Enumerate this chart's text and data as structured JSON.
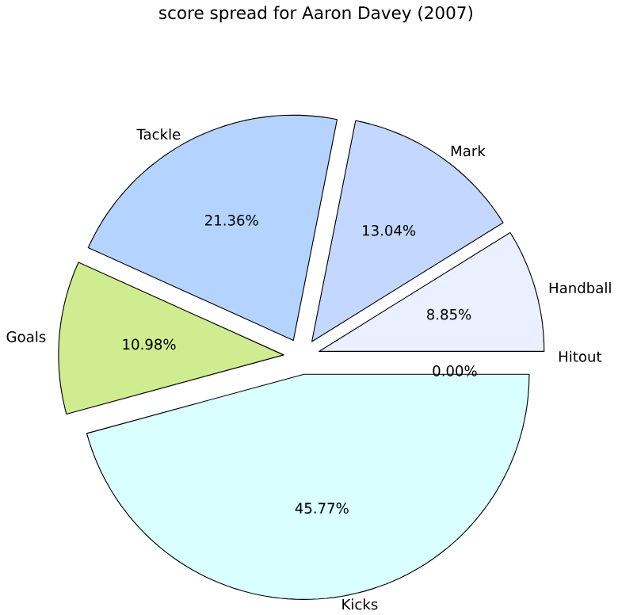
{
  "chart_data": {
    "type": "pie",
    "title": "score spread for Aaron Davey (2007)",
    "categories": [
      "Handball",
      "Mark",
      "Tackle",
      "Goals",
      "Kicks",
      "Hitout"
    ],
    "values": [
      8.85,
      13.04,
      21.36,
      10.98,
      45.77,
      0.0
    ],
    "value_labels": [
      "8.85%",
      "13.04%",
      "21.36%",
      "10.98%",
      "45.77%",
      "0.00%"
    ],
    "colors": [
      "#eaf0ff",
      "#c4d8ff",
      "#b4d4ff",
      "#d0ec90",
      "#d9ffff",
      "#e8e8e8"
    ]
  }
}
